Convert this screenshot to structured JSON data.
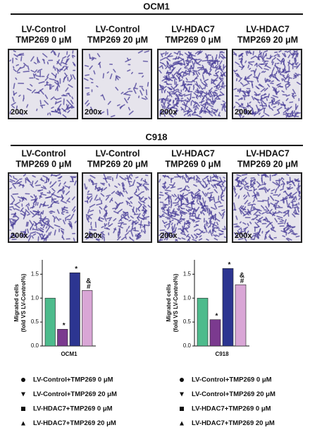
{
  "panels": [
    {
      "title": "OCM1",
      "images": [
        {
          "label": [
            "LV-Control",
            "TMP269 0 μM"
          ],
          "magnification": "200x"
        },
        {
          "label": [
            "LV-Control",
            "TMP269 20 μM"
          ],
          "magnification": "200x"
        },
        {
          "label": [
            "LV-HDAC7",
            "TMP269 0 μM"
          ],
          "magnification": "200x"
        },
        {
          "label": [
            "LV-HDAC7",
            "TMP269 20 μM"
          ],
          "magnification": "200x"
        }
      ]
    },
    {
      "title": "C918",
      "images": [
        {
          "label": [
            "LV-Control",
            "TMP269 0 μM"
          ],
          "magnification": "200x"
        },
        {
          "label": [
            "LV-Control",
            "TMP269 20 μM"
          ],
          "magnification": "200x"
        },
        {
          "label": [
            "LV-HDAC7",
            "TMP269 0 μM"
          ],
          "magnification": "200x"
        },
        {
          "label": [
            "LV-HDAC7",
            "TMP269 20 μM"
          ],
          "magnification": "200x"
        }
      ]
    }
  ],
  "chart_data": [
    {
      "type": "bar",
      "x_label": "OCM1",
      "y_label": [
        "Migrated cells",
        "(fold VS LV-Control%)"
      ],
      "categories": [
        "LV-Control+TMP269 0 μM",
        "LV-Control+TMP269 20 μM",
        "LV-HDAC7+TMP269 0 μM",
        "LV-HDAC7+TMP269 20 μM"
      ],
      "values": [
        1.0,
        0.35,
        1.53,
        1.16
      ],
      "colors": [
        "#4dbb8c",
        "#7b3a8f",
        "#2c3591",
        "#d9a6d6"
      ],
      "markers": [
        "circle",
        "triangle-down",
        "square",
        "triangle-up"
      ],
      "annotations": [
        [],
        [
          "*"
        ],
        [
          "*"
        ],
        [
          "&",
          "#"
        ]
      ],
      "ylim": [
        0,
        1.8
      ],
      "yticks": [
        {
          "value": 0,
          "label": "0.0"
        },
        0.5,
        {
          "value": 1,
          "label": "1.0"
        },
        1.5
      ]
    },
    {
      "type": "bar",
      "x_label": "C918",
      "y_label": [
        "Migrated cells",
        "(fold VS LV-Control%)"
      ],
      "categories": [
        "LV-Control+TMP269 0 μM",
        "LV-Control+TMP269 20 μM",
        "LV-HDAC7+TMP269 0 μM",
        "LV-HDAC7+TMP269 20 μM"
      ],
      "values": [
        1.0,
        0.55,
        1.62,
        1.28
      ],
      "colors": [
        "#4dbb8c",
        "#7b3a8f",
        "#2c3591",
        "#d9a6d6"
      ],
      "markers": [
        "circle",
        "triangle-down",
        "square",
        "triangle-up"
      ],
      "annotations": [
        [],
        [
          "*"
        ],
        [
          "*"
        ],
        [
          "&",
          "#"
        ]
      ],
      "ylim": [
        0,
        1.8
      ],
      "yticks": [
        {
          "value": 0,
          "label": "0.0"
        },
        0.5,
        {
          "value": 1,
          "label": "1.0"
        },
        1.5
      ]
    }
  ]
}
